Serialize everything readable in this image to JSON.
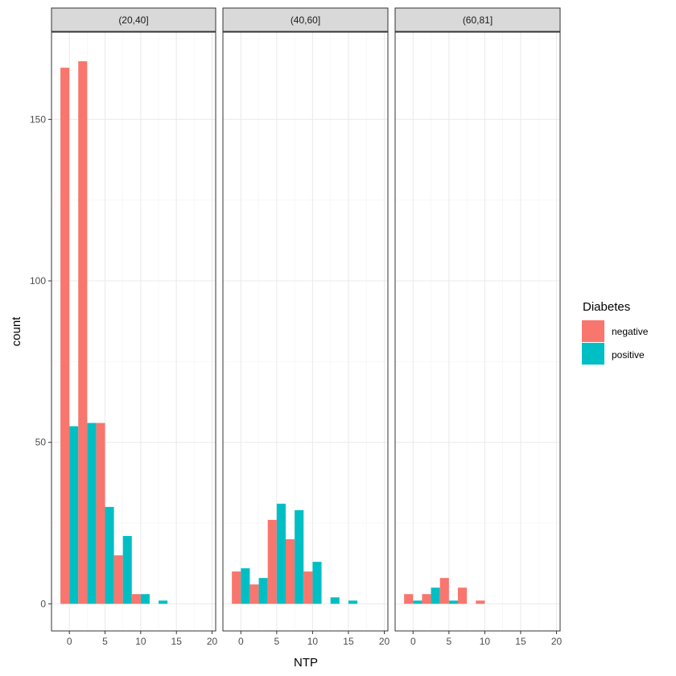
{
  "chart_data": {
    "type": "bar",
    "layout": "faceted",
    "xlabel": "NTP",
    "ylabel": "count",
    "xlim": [
      -2.5,
      20.5
    ],
    "ylim": [
      -8.4,
      177
    ],
    "x_ticks": [
      0,
      5,
      10,
      15,
      20
    ],
    "y_ticks": [
      0,
      50,
      100,
      150
    ],
    "grid": true,
    "bin_width": 2.5,
    "legend": {
      "title": "Diabetes",
      "position": "right",
      "entries": [
        {
          "label": "negative",
          "color": "#F8766D"
        },
        {
          "label": "positive",
          "color": "#00BFC4"
        }
      ]
    },
    "series_colors": {
      "negative": "#F8766D",
      "positive": "#00BFC4"
    },
    "facets": [
      {
        "label": "(20,40]",
        "bins": [
          0,
          2.5,
          5,
          7.5,
          10,
          12.5,
          15
        ],
        "negative": [
          166,
          168,
          56,
          15,
          3,
          0,
          0
        ],
        "positive": [
          55,
          56,
          30,
          21,
          3,
          1,
          0
        ]
      },
      {
        "label": "(40,60]",
        "bins": [
          0,
          2.5,
          5,
          7.5,
          10,
          12.5,
          15,
          17.5
        ],
        "negative": [
          10,
          6,
          26,
          20,
          10,
          0,
          0,
          0
        ],
        "positive": [
          11,
          8,
          31,
          29,
          13,
          2,
          1,
          0
        ]
      },
      {
        "label": "(60,81]",
        "bins": [
          0,
          2.5,
          5,
          7.5,
          10
        ],
        "negative": [
          3,
          3,
          8,
          5,
          1
        ],
        "positive": [
          1,
          5,
          1,
          0,
          0
        ]
      }
    ]
  }
}
